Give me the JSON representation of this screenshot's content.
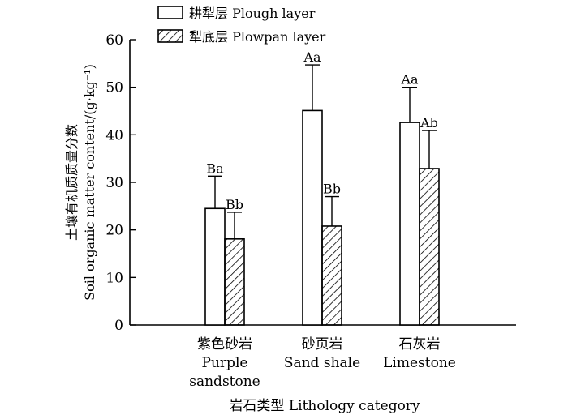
{
  "chart_data": {
    "type": "bar",
    "categories": [
      {
        "zh": "紫色砂岩",
        "en": [
          "Purple",
          "sandstone"
        ]
      },
      {
        "zh": "砂页岩",
        "en": [
          "Sand shale"
        ]
      },
      {
        "zh": "石灰岩",
        "en": [
          "Limestone"
        ]
      }
    ],
    "series": [
      {
        "name": "耕犁层 Plough layer",
        "pattern": "open",
        "values": [
          24.5,
          45.1,
          42.6
        ],
        "errors": [
          6.8,
          9.6,
          7.4
        ],
        "labels": [
          "Ba",
          "Aa",
          "Aa"
        ]
      },
      {
        "name": "犁底层 Plowpan layer",
        "pattern": "hatched",
        "values": [
          18.1,
          20.8,
          32.9
        ],
        "errors": [
          5.6,
          6.2,
          8.0
        ],
        "labels": [
          "Bb",
          "Bb",
          "Ab"
        ]
      }
    ],
    "xlabel": "岩石类型 Lithology category",
    "ylabel_zh": "土壤有机质质量分数",
    "ylabel_en": "Soil organic matter content/(g·kg⁻¹)",
    "ylim": [
      0,
      60
    ],
    "yticks": [
      0,
      10,
      20,
      30,
      40,
      50,
      60
    ],
    "legend_position": "top",
    "grid": false,
    "colors": {
      "bar_fill": "#ffffff",
      "stroke": "#000000"
    }
  }
}
